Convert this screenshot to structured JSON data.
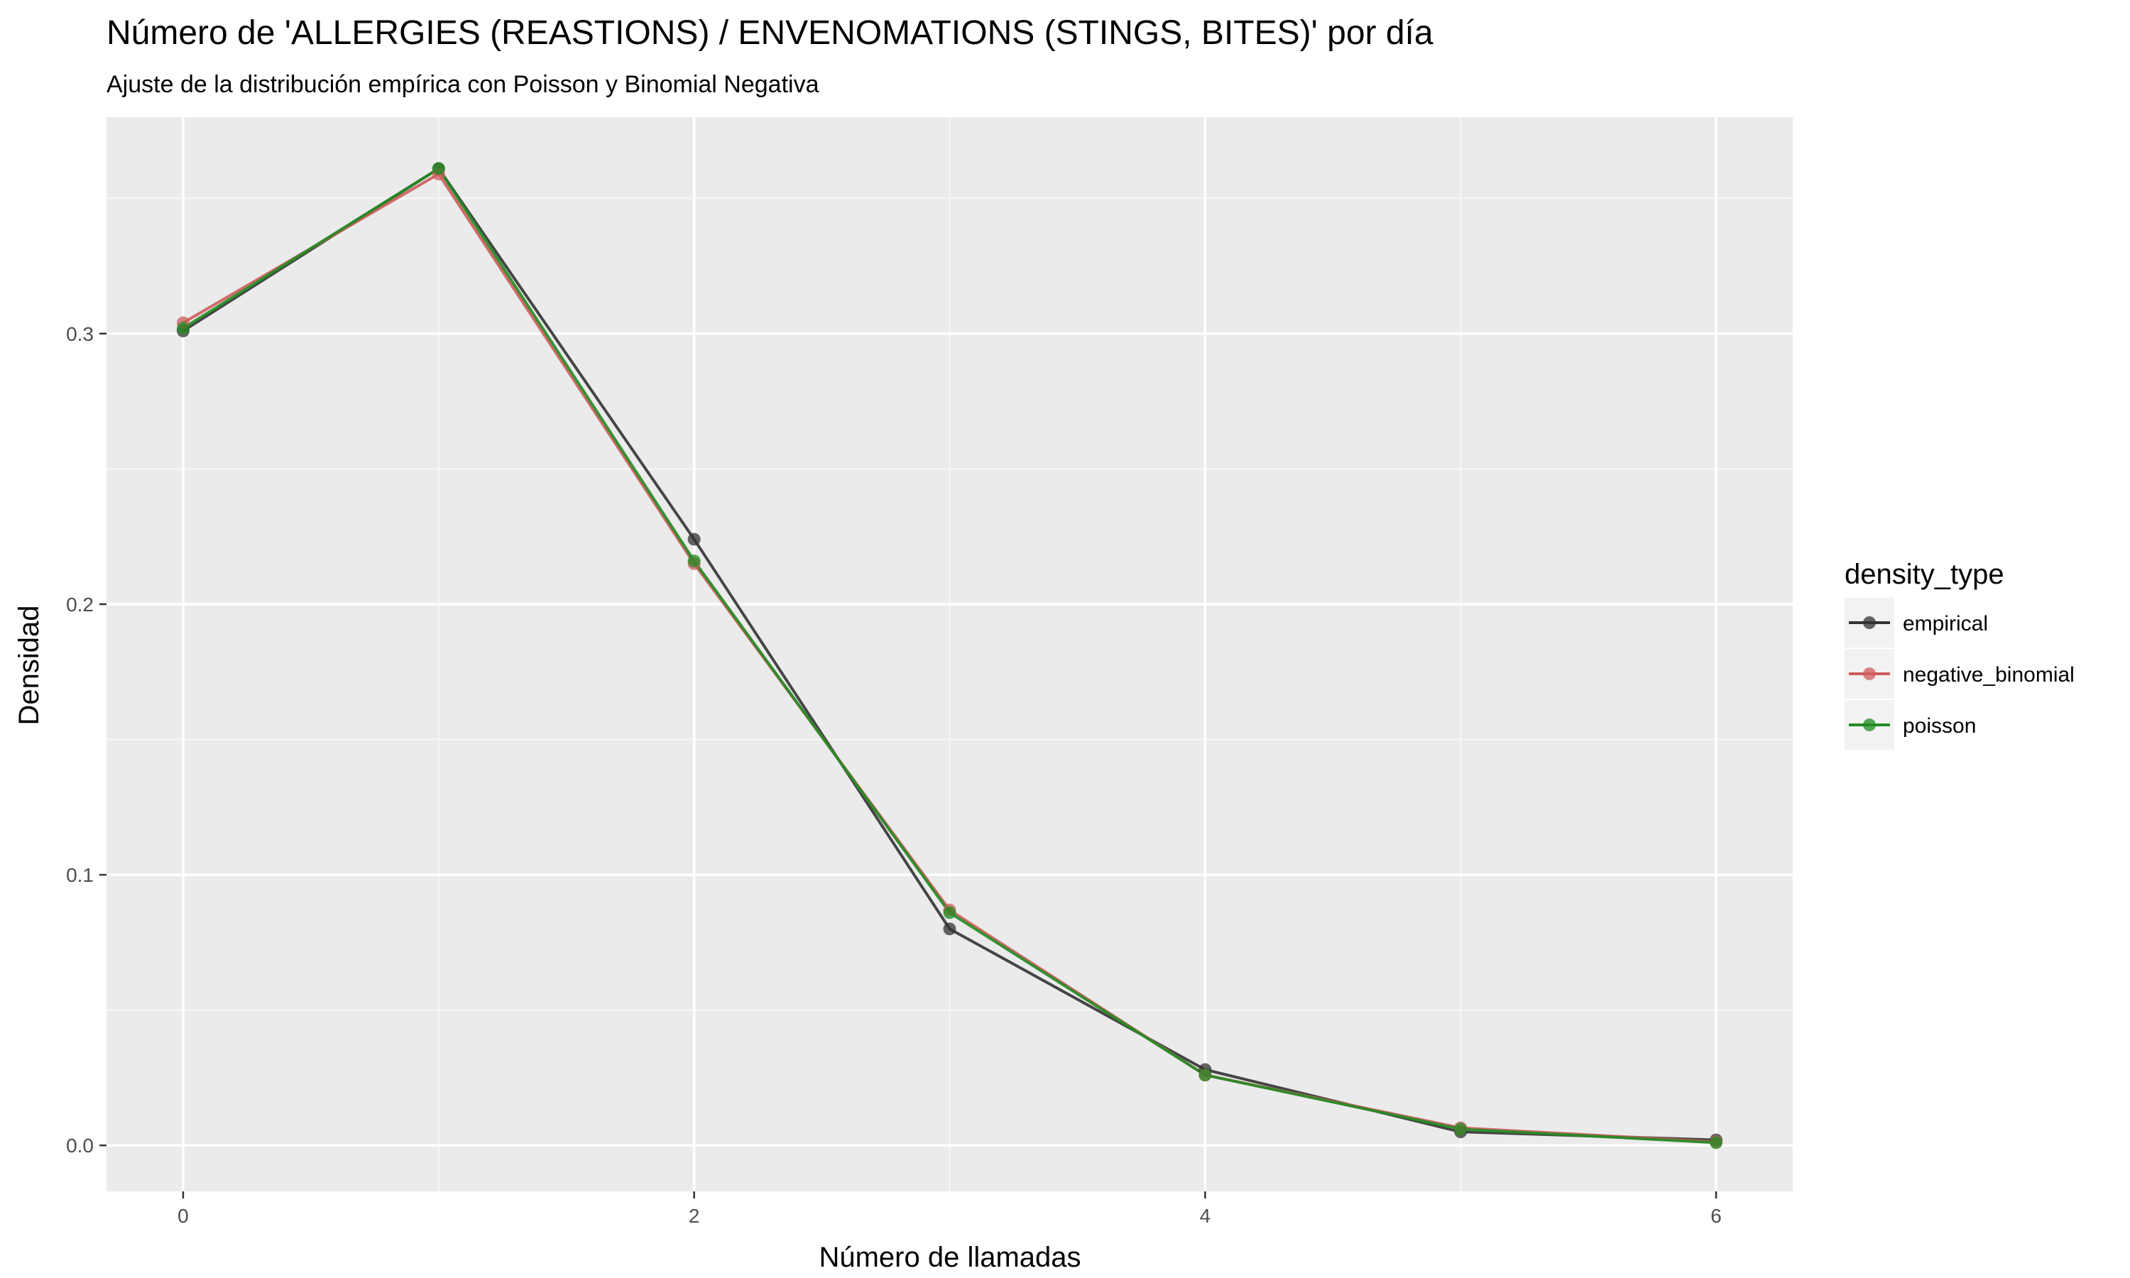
{
  "chart_data": {
    "type": "line",
    "title": "Número de 'ALLERGIES (REASTIONS) / ENVENOMATIONS (STINGS, BITES)' por día",
    "subtitle": "Ajuste de la distribución empírica con Poisson y Binomial Negativa",
    "xlabel": "Número de llamadas",
    "ylabel": "Densidad",
    "x": [
      0,
      1,
      2,
      3,
      4,
      5,
      6
    ],
    "xlim": [
      -0.3,
      6.3
    ],
    "ylim": [
      -0.017,
      0.38
    ],
    "xticks": [
      0,
      2,
      4,
      6
    ],
    "xtick_labels": [
      "0",
      "2",
      "4",
      "6"
    ],
    "yticks": [
      0.0,
      0.1,
      0.2,
      0.3
    ],
    "ytick_labels": [
      "0.0",
      "0.1",
      "0.2",
      "0.3"
    ],
    "grid": true,
    "legend": {
      "title": "density_type",
      "position": "right"
    },
    "series": [
      {
        "name": "empirical",
        "color": "#333333",
        "values": [
          0.301,
          0.361,
          0.224,
          0.08,
          0.028,
          0.005,
          0.002
        ]
      },
      {
        "name": "negative_binomial",
        "color": "#cd5c5c",
        "values": [
          0.304,
          0.359,
          0.215,
          0.087,
          0.026,
          0.0065,
          0.0013
        ]
      },
      {
        "name": "poisson",
        "color": "#228b22",
        "values": [
          0.302,
          0.361,
          0.216,
          0.086,
          0.026,
          0.006,
          0.001
        ]
      }
    ]
  }
}
